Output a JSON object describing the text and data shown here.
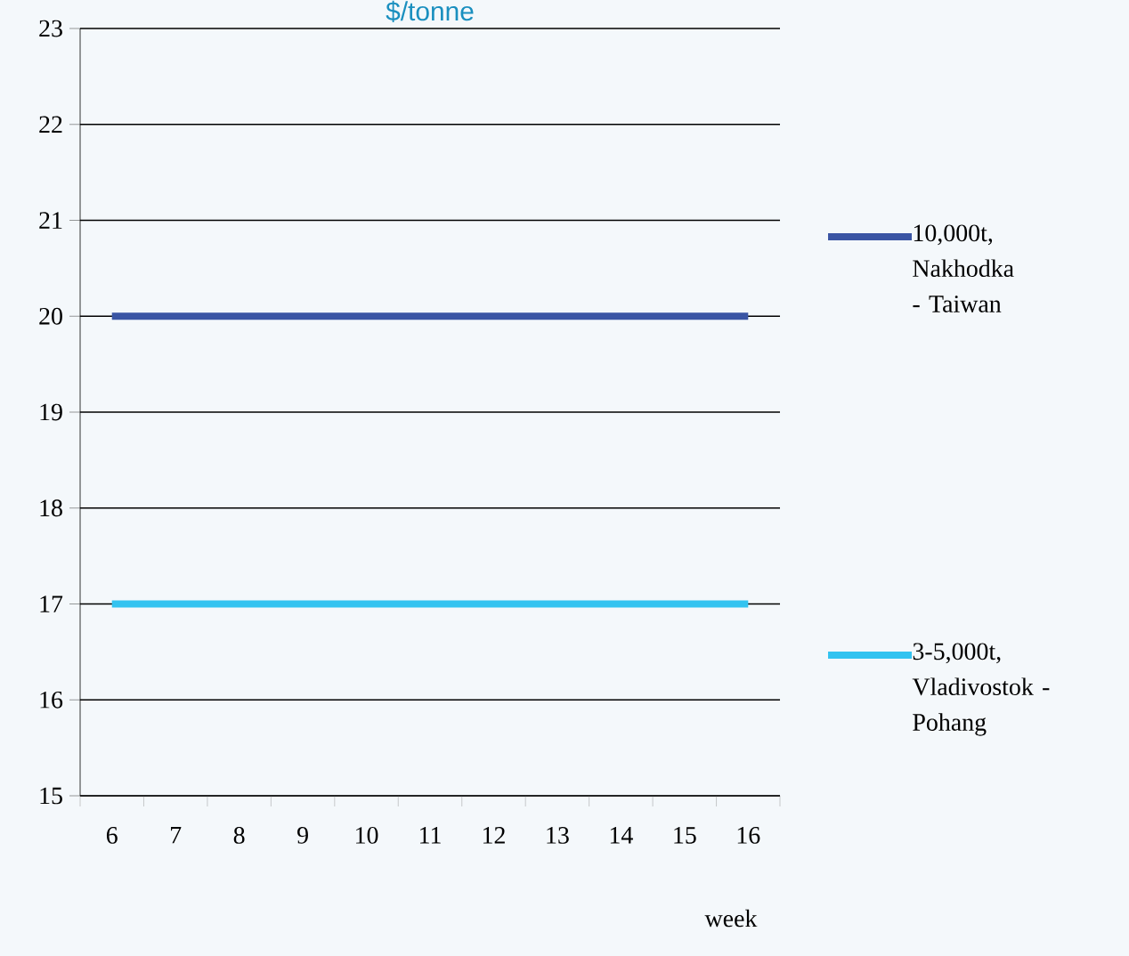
{
  "chart_data": {
    "type": "line",
    "title": "$/tonne",
    "xlabel": "week",
    "categories": [
      "6",
      "7",
      "8",
      "9",
      "10",
      "11",
      "12",
      "13",
      "14",
      "15",
      "16"
    ],
    "series": [
      {
        "name": "10,000t, Nakhodka - Taiwan",
        "color": "#3a55a4",
        "values": [
          20,
          20,
          20,
          20,
          20,
          20,
          20,
          20,
          20,
          20,
          20
        ]
      },
      {
        "name": "3-5,000t, Vladivostok - Pohang",
        "color": "#33c3f0",
        "values": [
          17,
          17,
          17,
          17,
          17,
          17,
          17,
          17,
          17,
          17,
          17
        ]
      }
    ],
    "ylim": [
      15,
      23
    ],
    "yticks": [
      15,
      16,
      17,
      18,
      19,
      20,
      21,
      22,
      23
    ],
    "grid": "y",
    "legend": "right",
    "line_style": "solid"
  }
}
